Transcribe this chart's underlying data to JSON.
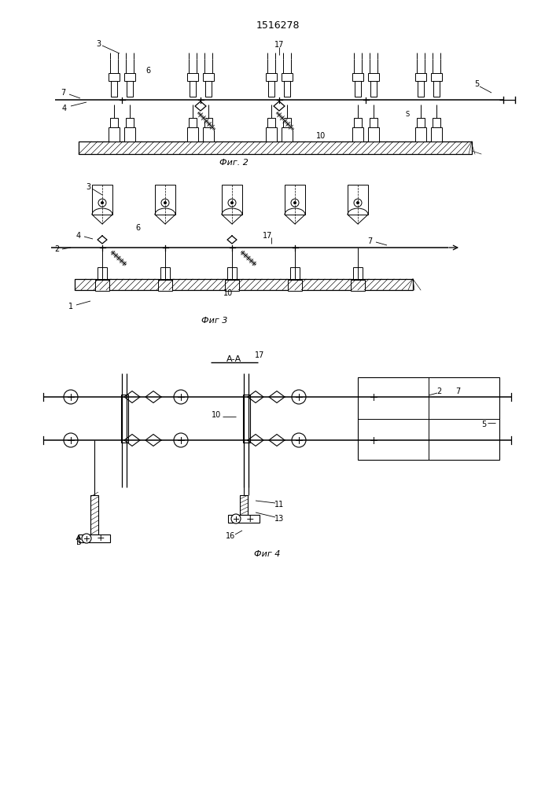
{
  "title": "1516278",
  "fig2_label": "Фиг. 2",
  "fig3_label": "Фиг 3",
  "fig4_label": "Фиг 4",
  "bg_color": "#ffffff"
}
